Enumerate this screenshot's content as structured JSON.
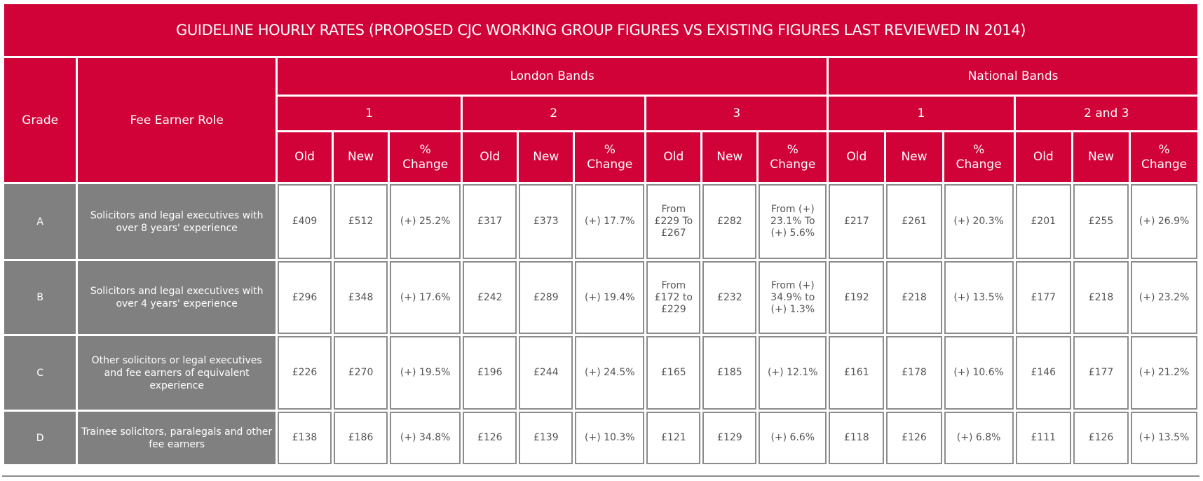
{
  "title": "GUIDELINE HOURLY RATES (PROPOSED CJC WORKING GROUP FIGURES VS EXISTING FIGURES LAST REVIEWED IN 2014)",
  "headers": {
    "grade": "Grade",
    "role": "Fee Earner Role",
    "london": "London Bands",
    "national": "National Bands",
    "bands": [
      "1",
      "2",
      "3",
      "1",
      "2 and 3"
    ],
    "old": "Old",
    "new": "New",
    "change_line1": "%",
    "change_line2": "Change"
  },
  "rows": [
    {
      "grade": "A",
      "role": "Solicitors and legal executives with over 8 years' experience",
      "values": [
        "£409",
        "£512",
        "(+) 25.2%",
        "£317",
        "£373",
        "(+) 17.7%",
        "From £229 To £267",
        "£282",
        "From (+) 23.1% To (+) 5.6%",
        "£217",
        "£261",
        "(+) 20.3%",
        "£201",
        "£255",
        "(+) 26.9%"
      ]
    },
    {
      "grade": "B",
      "role": "Solicitors and legal executives with over 4 years' experience",
      "values": [
        "£296",
        "£348",
        "(+) 17.6%",
        "£242",
        "£289",
        "(+) 19.4%",
        "From £172 to £229",
        "£232",
        "From (+) 34.9% to (+) 1.3%",
        "£192",
        "£218",
        "(+) 13.5%",
        "£177",
        "£218",
        "(+) 23.2%"
      ]
    },
    {
      "grade": "C",
      "role": "Other solicitors or legal executives and fee earners of equivalent experience",
      "values": [
        "£226",
        "£270",
        "(+) 19.5%",
        "£196",
        "£244",
        "(+) 24.5%",
        "£165",
        "£185",
        "(+) 12.1%",
        "£161",
        "£178",
        "(+) 10.6%",
        "£146",
        "£177",
        "(+) 21.2%"
      ]
    },
    {
      "grade": "D",
      "role": "Trainee solicitors, paralegals and other fee earners",
      "values": [
        "£138",
        "£186",
        "(+) 34.8%",
        "£126",
        "£139",
        "(+) 10.3%",
        "£121",
        "£129",
        "(+) 6.6%",
        "£118",
        "£126",
        "(+) 6.8%",
        "£111",
        "£126",
        "(+) 13.5%"
      ]
    }
  ],
  "colors": {
    "header_red": "#d10238",
    "grey_cell": "#808080",
    "cell_border": "#8c8c8c",
    "value_text": "#555555"
  }
}
